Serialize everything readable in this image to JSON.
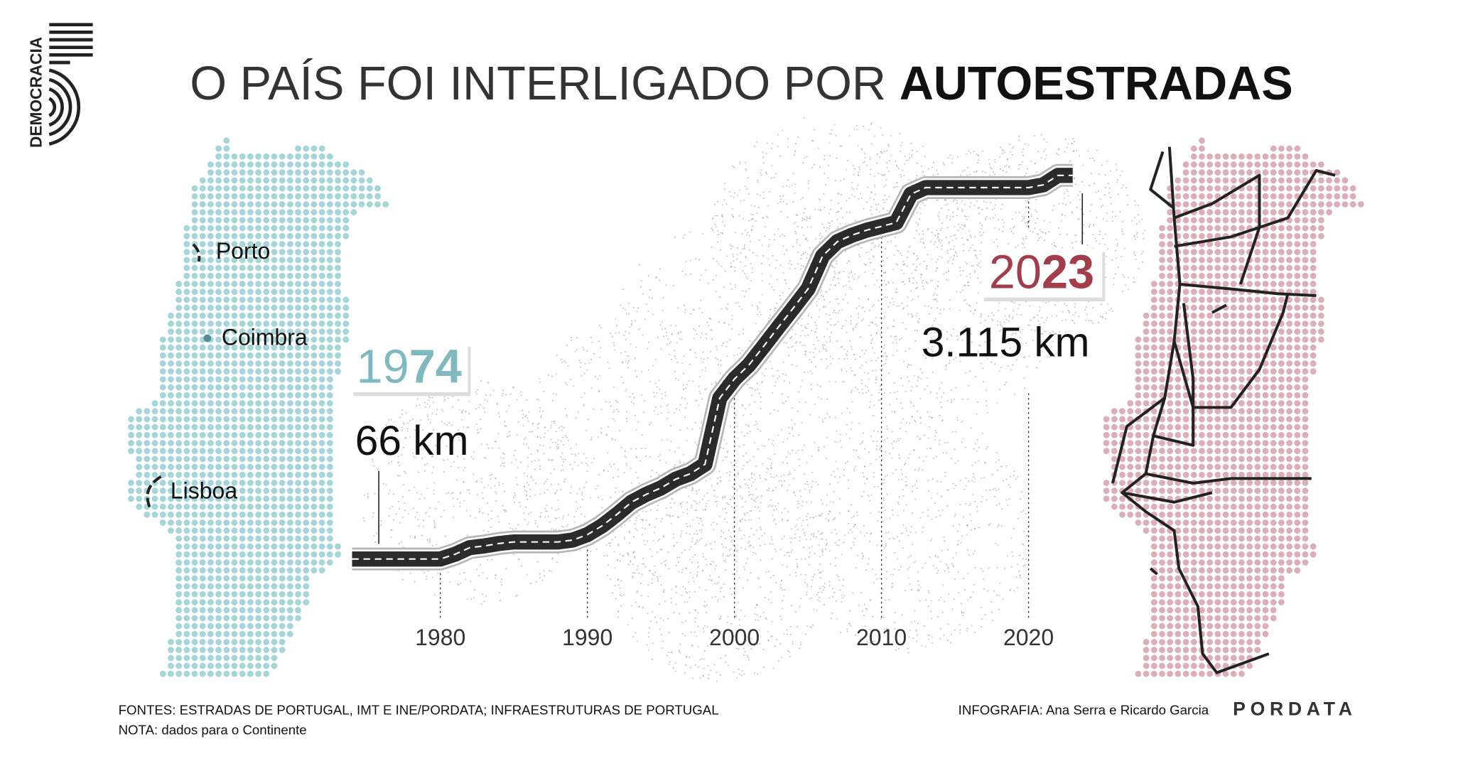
{
  "chart_data": {
    "type": "line",
    "title": "O PAÍS FOI INTERLIGADO POR",
    "title_emphasis": "AUTOESTRADAS",
    "brand": "DEMOCRACIA",
    "x": [
      1974,
      1975,
      1976,
      1977,
      1978,
      1979,
      1980,
      1981,
      1982,
      1983,
      1984,
      1985,
      1986,
      1987,
      1988,
      1989,
      1990,
      1991,
      1992,
      1993,
      1994,
      1995,
      1996,
      1997,
      1998,
      1999,
      2000,
      2001,
      2002,
      2003,
      2004,
      2005,
      2006,
      2007,
      2008,
      2009,
      2010,
      2011,
      2012,
      2013,
      2014,
      2015,
      2016,
      2017,
      2018,
      2019,
      2020,
      2021,
      2022,
      2023
    ],
    "values": [
      66,
      66,
      66,
      66,
      66,
      66,
      66,
      104,
      157,
      170,
      190,
      202,
      202,
      202,
      202,
      217,
      260,
      330,
      420,
      518,
      580,
      631,
      700,
      744,
      819,
      1346,
      1497,
      1610,
      1760,
      1911,
      2060,
      2213,
      2476,
      2589,
      2640,
      2680,
      2710,
      2740,
      2966,
      3018,
      3018,
      3018,
      3018,
      3018,
      3018,
      3018,
      3018,
      3040,
      3115,
      3115
    ],
    "value_labels": [
      "66 km",
      null,
      null,
      null,
      null,
      null,
      null,
      null,
      null,
      null,
      null,
      null,
      null,
      null,
      null,
      null,
      null,
      null,
      null,
      null,
      null,
      null,
      null,
      null,
      null,
      null,
      null,
      null,
      null,
      null,
      null,
      null,
      null,
      null,
      null,
      null,
      null,
      null,
      null,
      null,
      null,
      null,
      null,
      null,
      null,
      null,
      null,
      null,
      null,
      "3.115 km"
    ],
    "xlim": [
      1970,
      2030
    ],
    "xticks": [
      1980,
      1990,
      2000,
      2010,
      2020
    ],
    "ylim": [
      0,
      3400
    ],
    "map_labels": [
      "Porto",
      "Coimbra",
      "Lisboa"
    ],
    "sources": "FONTES: ESTRADAS DE PORTUGAL, IMT E INE/PORDATA; INFRAESTRUTURAS DE PORTUGAL",
    "note": "NOTA: dados para o Continente",
    "credits": "INFOGRAFIA: Ana Serra e Ricardo Garcia",
    "publisher": "PORDATA"
  }
}
